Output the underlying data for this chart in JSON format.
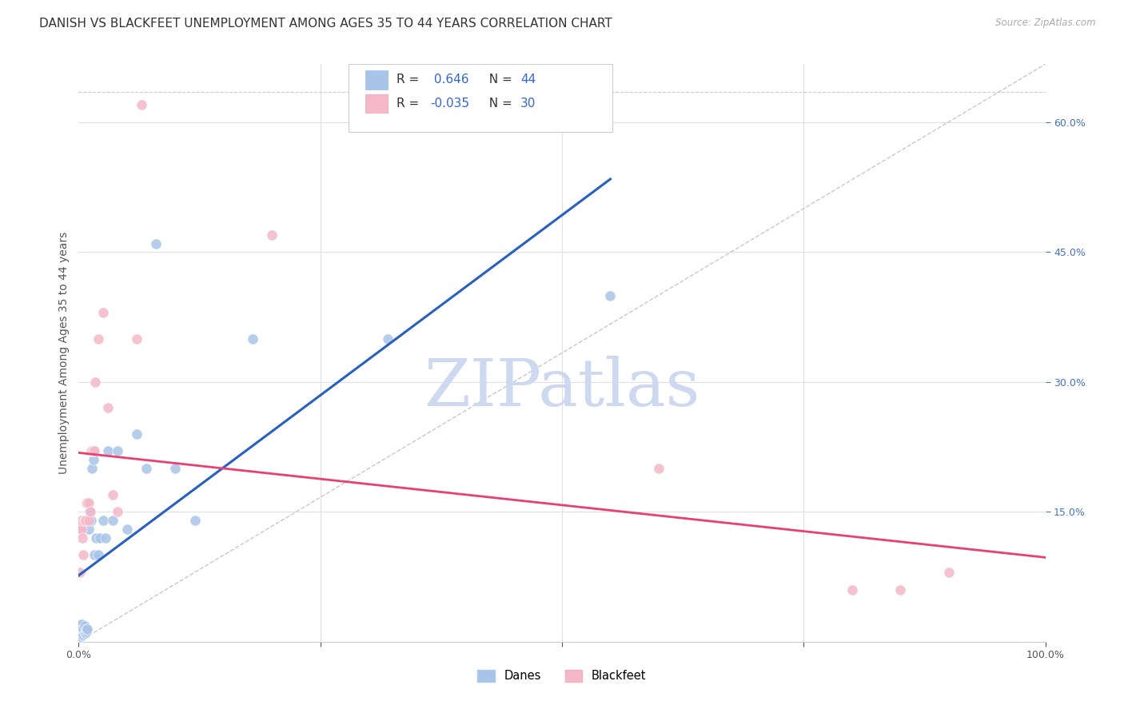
{
  "title": "DANISH VS BLACKFEET UNEMPLOYMENT AMONG AGES 35 TO 44 YEARS CORRELATION CHART",
  "source": "Source: ZipAtlas.com",
  "ylabel": "Unemployment Among Ages 35 to 44 years",
  "xlim": [
    0,
    1.0
  ],
  "ylim": [
    0,
    0.667
  ],
  "yticks_right": [
    0.15,
    0.3,
    0.45,
    0.6
  ],
  "ytick_labels_right": [
    "15.0%",
    "30.0%",
    "45.0%",
    "60.0%"
  ],
  "legend_blue_label": "Danes",
  "legend_pink_label": "Blackfeet",
  "R_blue": 0.646,
  "N_blue": 44,
  "R_pink": -0.035,
  "N_pink": 30,
  "blue_color": "#a8c4e8",
  "pink_color": "#f4b8c8",
  "blue_line_color": "#2860c0",
  "pink_line_color": "#e84070",
  "danes_x": [
    0.001,
    0.001,
    0.001,
    0.002,
    0.002,
    0.002,
    0.002,
    0.003,
    0.003,
    0.003,
    0.004,
    0.004,
    0.005,
    0.005,
    0.006,
    0.006,
    0.007,
    0.008,
    0.008,
    0.009,
    0.01,
    0.01,
    0.011,
    0.013,
    0.014,
    0.015,
    0.016,
    0.018,
    0.02,
    0.022,
    0.025,
    0.028,
    0.03,
    0.035,
    0.04,
    0.05,
    0.06,
    0.07,
    0.08,
    0.1,
    0.12,
    0.18,
    0.32,
    0.55
  ],
  "danes_y": [
    0.005,
    0.008,
    0.012,
    0.006,
    0.01,
    0.015,
    0.02,
    0.008,
    0.012,
    0.02,
    0.01,
    0.015,
    0.008,
    0.015,
    0.01,
    0.018,
    0.01,
    0.012,
    0.015,
    0.015,
    0.13,
    0.14,
    0.15,
    0.14,
    0.2,
    0.21,
    0.1,
    0.12,
    0.1,
    0.12,
    0.14,
    0.12,
    0.22,
    0.14,
    0.22,
    0.13,
    0.24,
    0.2,
    0.46,
    0.2,
    0.14,
    0.35,
    0.35,
    0.4
  ],
  "blackfeet_x": [
    0.001,
    0.002,
    0.003,
    0.003,
    0.004,
    0.005,
    0.006,
    0.007,
    0.008,
    0.009,
    0.01,
    0.01,
    0.012,
    0.013,
    0.014,
    0.015,
    0.016,
    0.017,
    0.02,
    0.025,
    0.03,
    0.035,
    0.04,
    0.06,
    0.065,
    0.2,
    0.6,
    0.8,
    0.85,
    0.9
  ],
  "blackfeet_y": [
    0.08,
    0.13,
    0.13,
    0.14,
    0.12,
    0.1,
    0.14,
    0.14,
    0.16,
    0.16,
    0.14,
    0.16,
    0.15,
    0.22,
    0.22,
    0.22,
    0.22,
    0.3,
    0.35,
    0.38,
    0.27,
    0.17,
    0.15,
    0.35,
    0.62,
    0.47,
    0.2,
    0.06,
    0.06,
    0.08
  ],
  "background_color": "#ffffff",
  "grid_color": "#e0e0e0",
  "title_fontsize": 11,
  "axis_label_fontsize": 10,
  "tick_fontsize": 9,
  "watermark_text": "ZIPatlas",
  "watermark_color": "#ccd9f0",
  "watermark_fontsize": 60
}
